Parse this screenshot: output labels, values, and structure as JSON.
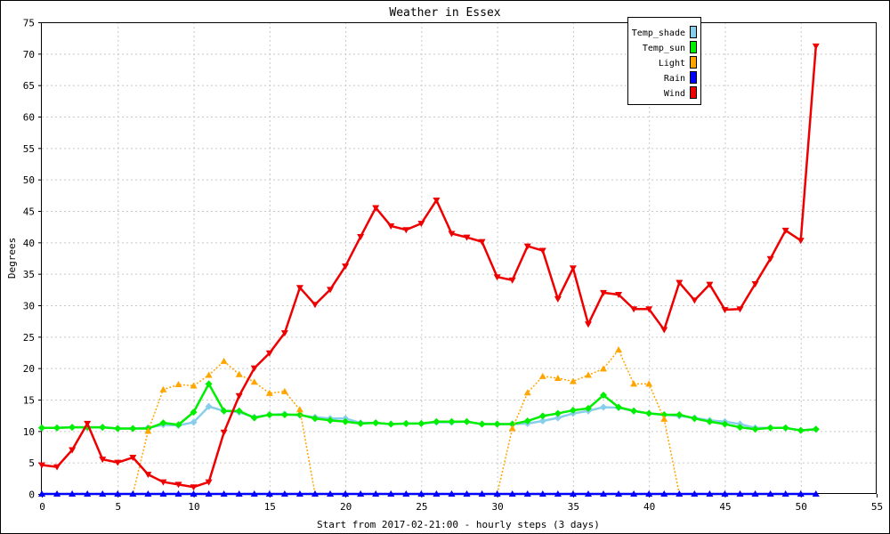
{
  "chart_data": {
    "type": "line",
    "title": "Weather in Essex",
    "xlabel": "Start from 2017-02-21:00 - hourly steps (3 days)",
    "ylabel": "Degrees",
    "xlim": [
      0,
      55
    ],
    "ylim": [
      0,
      75
    ],
    "xticks": [
      "0",
      "5",
      "10",
      "15",
      "20",
      "25",
      "30",
      "35",
      "40",
      "45",
      "50",
      "55"
    ],
    "yticks": [
      "0",
      "5",
      "10",
      "15",
      "20",
      "25",
      "30",
      "35",
      "40",
      "45",
      "50",
      "55",
      "60",
      "65",
      "70",
      "75"
    ],
    "grid": true,
    "legend_position": "top-right",
    "series": [
      {
        "name": "Temp_shade",
        "color": "#87ceeb",
        "marker": "diamond",
        "dash": "solid",
        "values": [
          10.5,
          10.5,
          10.6,
          10.6,
          10.6,
          10.4,
          10.4,
          10.5,
          11.0,
          10.9,
          11.4,
          13.9,
          13.2,
          13.0,
          12.2,
          12.6,
          12.7,
          12.5,
          12.2,
          12.0,
          12.0,
          11.3,
          11.3,
          11.1,
          11.2,
          11.2,
          11.4,
          11.4,
          11.5,
          11.1,
          11.1,
          11.1,
          11.2,
          11.6,
          12.1,
          12.8,
          13.2,
          13.8,
          13.7,
          13.2,
          12.8,
          12.6,
          12.4,
          12.1,
          11.7,
          11.5,
          11.1,
          10.5,
          10.5,
          10.5,
          10.1,
          10.3
        ]
      },
      {
        "name": "Temp_sun",
        "color": "#00ee00",
        "marker": "diamond",
        "dash": "solid",
        "values": [
          10.5,
          10.5,
          10.6,
          10.6,
          10.6,
          10.4,
          10.4,
          10.4,
          11.3,
          11.0,
          13.0,
          17.5,
          13.2,
          13.2,
          12.1,
          12.6,
          12.6,
          12.6,
          12.0,
          11.7,
          11.5,
          11.2,
          11.3,
          11.1,
          11.2,
          11.2,
          11.5,
          11.5,
          11.5,
          11.1,
          11.1,
          11.1,
          11.6,
          12.4,
          12.8,
          13.3,
          13.6,
          15.7,
          13.8,
          13.2,
          12.8,
          12.6,
          12.6,
          12.0,
          11.5,
          11.1,
          10.6,
          10.3,
          10.5,
          10.5,
          10.1,
          10.3
        ]
      },
      {
        "name": "Light",
        "color": "#ffa500",
        "marker": "triangle-up",
        "dash": "dotted",
        "values": [
          0,
          0,
          0,
          0,
          0,
          0,
          0,
          10.0,
          16.6,
          17.4,
          17.2,
          18.9,
          21.1,
          19.0,
          17.8,
          16.0,
          16.3,
          13.4,
          0,
          0,
          0,
          0,
          0,
          0,
          0,
          0,
          0,
          0,
          0,
          0,
          0,
          10.4,
          16.1,
          18.7,
          18.4,
          17.9,
          18.9,
          19.9,
          22.9,
          17.5,
          17.5,
          11.9,
          0,
          0,
          0,
          0,
          0,
          0,
          0,
          0,
          0,
          0
        ]
      },
      {
        "name": "Rain",
        "color": "#0000ff",
        "marker": "triangle-up",
        "dash": "solid",
        "values": [
          0,
          0,
          0,
          0,
          0,
          0,
          0,
          0,
          0,
          0,
          0,
          0,
          0,
          0,
          0,
          0,
          0,
          0,
          0,
          0,
          0,
          0,
          0,
          0,
          0,
          0,
          0,
          0,
          0,
          0,
          0,
          0,
          0,
          0,
          0,
          0,
          0,
          0,
          0,
          0,
          0,
          0,
          0,
          0,
          0,
          0,
          0,
          0,
          0,
          0,
          0,
          0
        ]
      },
      {
        "name": "Wind",
        "color": "#ee0000",
        "marker": "triangle-down",
        "dash": "solid",
        "values": [
          4.6,
          4.3,
          7.0,
          11.2,
          5.5,
          5.0,
          5.8,
          3.1,
          1.9,
          1.5,
          1.1,
          1.9,
          9.8,
          15.6,
          20.0,
          22.4,
          25.6,
          32.8,
          30.1,
          32.5,
          36.2,
          40.9,
          45.5,
          42.6,
          42.0,
          43.0,
          46.7,
          41.4,
          40.8,
          40.1,
          34.5,
          34.0,
          39.4,
          38.7,
          31.0,
          35.9,
          27.0,
          32.0,
          31.7,
          29.4,
          29.4,
          26.1,
          33.6,
          30.8,
          33.3,
          29.3,
          29.4,
          33.4,
          37.4,
          41.9,
          40.3,
          71.2
        ]
      }
    ]
  }
}
